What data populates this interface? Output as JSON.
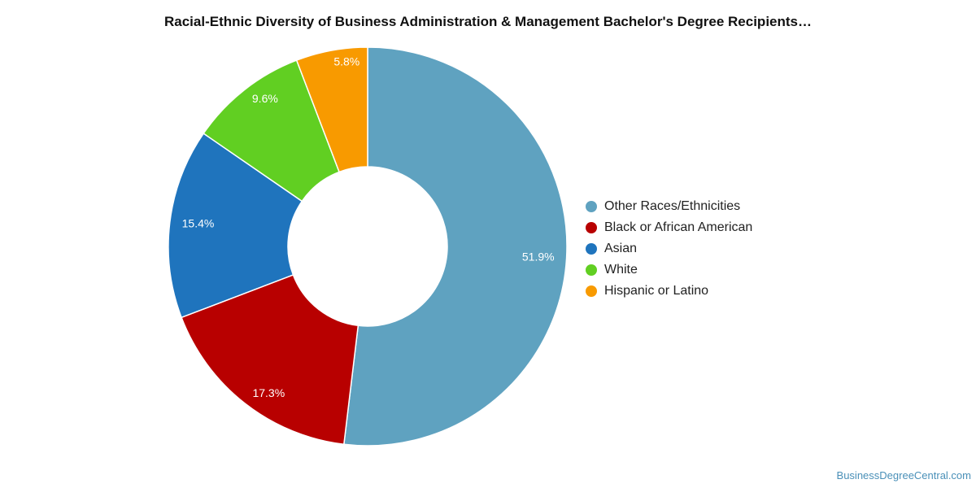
{
  "chart_data": {
    "type": "pie",
    "title": "Racial-Ethnic Diversity of Business Administration & Management Bachelor's Degree Recipients…",
    "categories": [
      "Other Races/Ethnicities",
      "Black or African American",
      "Asian",
      "White",
      "Hispanic or Latino"
    ],
    "values": [
      51.9,
      17.3,
      15.4,
      9.6,
      5.8
    ],
    "data_labels": [
      "51.9%",
      "17.3%",
      "15.4%",
      "9.6%",
      "5.8%"
    ],
    "colors": [
      "#5fa2c0",
      "#b80000",
      "#1f74bd",
      "#61cf22",
      "#f89a00"
    ],
    "legend_position": "right"
  },
  "footer": {
    "credit": "BusinessDegreeCentral.com"
  }
}
